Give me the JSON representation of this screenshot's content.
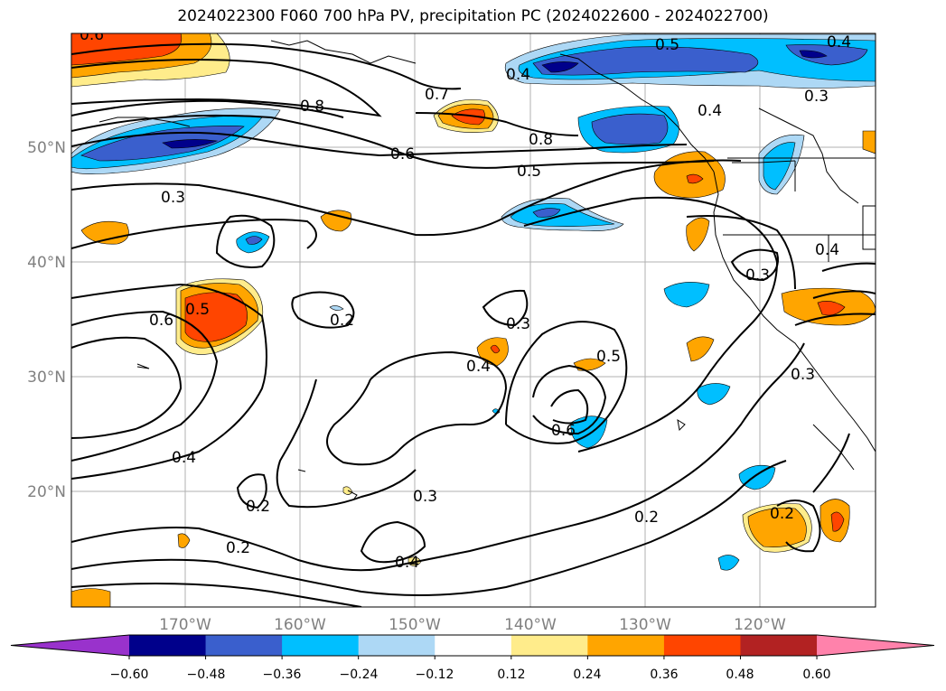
{
  "title": "2024022300 F060 700 hPa PV, precipitation PC (2024022600 - 2024022700)",
  "latitude_labels": [
    "50°N",
    "40°N",
    "30°N",
    "20°N"
  ],
  "longitude_labels": [
    "170°W",
    "160°W",
    "150°W",
    "140°W",
    "130°W",
    "120°W"
  ],
  "colorbar": {
    "ticks": [
      "−0.60",
      "−0.48",
      "−0.36",
      "−0.24",
      "−0.12",
      "0.12",
      "0.24",
      "0.36",
      "0.48",
      "0.60"
    ],
    "colors": [
      "#9932cc",
      "#00008b",
      "#3a5fcd",
      "#00bfff",
      "#add8f5",
      "#ffffff",
      "#ffec8b",
      "#ffa500",
      "#ff4500",
      "#b22222",
      "#ff82ab"
    ]
  },
  "contour_labels": [
    "0.6",
    "0.5",
    "0.4",
    "0.4",
    "0.7",
    "0.8",
    "0.8",
    "0.4",
    "0.3",
    "0.6",
    "0.5",
    "0.3",
    "0.4",
    "0.3",
    "0.6",
    "0.5",
    "0.2",
    "0.3",
    "0.4",
    "0.5",
    "0.6",
    "0.3",
    "0.4",
    "0.2",
    "0.3",
    "0.2",
    "0.4",
    "0.2",
    "0.2"
  ]
}
